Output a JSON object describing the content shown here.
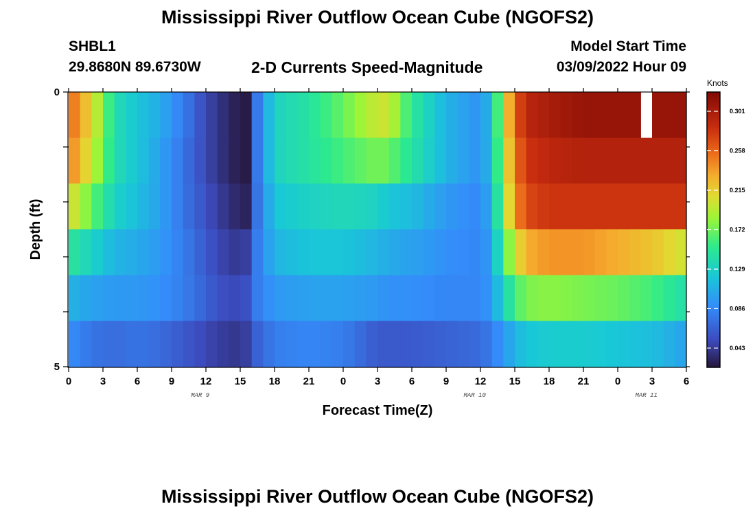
{
  "page": {
    "title": "Mississippi River Outflow Ocean Cube (NGOFS2)",
    "footer_title": "Mississippi River Outflow Ocean Cube (NGOFS2)",
    "station": "SHBL1",
    "coords": "29.8680N  89.6730W",
    "variable": "2-D Currents Speed-Magnitude",
    "model_start_label": "Model Start Time",
    "model_start_value": "03/09/2022 Hour 09"
  },
  "chart_data": {
    "type": "heatmap",
    "title": "2-D Currents Speed-Magnitude",
    "xlabel": "Forecast Time(Z)",
    "ylabel": "Depth (ft)",
    "x_tick_labels": [
      "0",
      "3",
      "6",
      "9",
      "12",
      "15",
      "18",
      "21",
      "0",
      "3",
      "6",
      "9",
      "12",
      "15",
      "18",
      "21",
      "0",
      "3",
      "6"
    ],
    "x_date_labels": [
      {
        "label": "MAR 9",
        "hour": 11.5
      },
      {
        "label": "MAR 10",
        "hour": 35.5
      },
      {
        "label": "MAR 11",
        "hour": 50.5
      }
    ],
    "x_range_hours": [
      0,
      54
    ],
    "y_tick_labels": [
      "0",
      "5"
    ],
    "y_range": [
      0,
      5
    ],
    "colorbar": {
      "unit": "Knots",
      "range": [
        0.022,
        0.322
      ],
      "tick_values": [
        0.301,
        0.258,
        0.215,
        0.172,
        0.129,
        0.086,
        0.043
      ],
      "tick_labels": [
        "0.301",
        "0.258",
        "0.215",
        "0.172",
        "0.129",
        "0.086",
        "0.043"
      ]
    },
    "layers": [
      {
        "key_hours": [
          0,
          2,
          4,
          6,
          8,
          10,
          12,
          13,
          15,
          15.5,
          16,
          18,
          21,
          24,
          27,
          28,
          30,
          33,
          36,
          37,
          38,
          39,
          40,
          42,
          45,
          48,
          51,
          54
        ],
        "key_values": [
          0.26,
          0.21,
          0.14,
          0.12,
          0.105,
          0.08,
          0.05,
          0.04,
          0.025,
          0.025,
          0.06,
          0.13,
          0.145,
          0.17,
          0.2,
          0.2,
          0.15,
          0.11,
          0.09,
          0.12,
          0.2,
          0.26,
          0.29,
          0.3,
          0.31,
          0.31,
          0.31,
          0.31
        ]
      },
      {
        "key_hours": [
          0,
          2,
          4,
          6,
          8,
          10,
          12,
          13,
          15,
          15.5,
          16,
          18,
          21,
          24,
          27,
          28,
          30,
          33,
          36,
          37,
          38,
          39,
          40,
          42,
          45,
          48,
          51,
          54
        ],
        "key_values": [
          0.25,
          0.2,
          0.14,
          0.12,
          0.1,
          0.075,
          0.05,
          0.04,
          0.025,
          0.025,
          0.06,
          0.13,
          0.145,
          0.16,
          0.175,
          0.17,
          0.145,
          0.11,
          0.09,
          0.12,
          0.19,
          0.25,
          0.28,
          0.29,
          0.295,
          0.295,
          0.295,
          0.295
        ]
      },
      {
        "key_hours": [
          0,
          2,
          4,
          6,
          8,
          10,
          12,
          13,
          15,
          15.5,
          16,
          18,
          21,
          24,
          27,
          28,
          30,
          33,
          36,
          37,
          38,
          39,
          40,
          42,
          45,
          48,
          51,
          54
        ],
        "key_values": [
          0.21,
          0.17,
          0.13,
          0.115,
          0.1,
          0.075,
          0.055,
          0.045,
          0.03,
          0.03,
          0.06,
          0.12,
          0.13,
          0.135,
          0.13,
          0.12,
          0.115,
          0.095,
          0.085,
          0.11,
          0.18,
          0.24,
          0.27,
          0.28,
          0.28,
          0.28,
          0.28,
          0.28
        ]
      },
      {
        "key_hours": [
          0,
          2,
          4,
          6,
          8,
          10,
          12,
          13,
          15,
          15.5,
          16,
          18,
          21,
          24,
          27,
          28,
          30,
          33,
          36,
          37,
          38,
          39,
          40,
          42,
          45,
          48,
          51,
          54
        ],
        "key_values": [
          0.15,
          0.13,
          0.11,
          0.105,
          0.095,
          0.08,
          0.06,
          0.05,
          0.04,
          0.045,
          0.07,
          0.11,
          0.12,
          0.12,
          0.11,
          0.105,
          0.1,
          0.09,
          0.085,
          0.1,
          0.16,
          0.2,
          0.23,
          0.24,
          0.24,
          0.23,
          0.22,
          0.2
        ]
      },
      {
        "key_hours": [
          0,
          2,
          4,
          6,
          8,
          10,
          12,
          13,
          15,
          15.5,
          16,
          18,
          21,
          24,
          27,
          28,
          30,
          33,
          36,
          37,
          38,
          39,
          40,
          42,
          45,
          48,
          51,
          54
        ],
        "key_values": [
          0.11,
          0.1,
          0.095,
          0.095,
          0.09,
          0.08,
          0.065,
          0.055,
          0.05,
          0.055,
          0.075,
          0.095,
          0.1,
          0.1,
          0.095,
          0.09,
          0.09,
          0.085,
          0.085,
          0.095,
          0.13,
          0.16,
          0.175,
          0.18,
          0.175,
          0.17,
          0.16,
          0.14
        ]
      },
      {
        "key_hours": [
          0,
          2,
          4,
          6,
          8,
          10,
          12,
          13,
          15,
          15.5,
          16,
          18,
          21,
          24,
          27,
          28,
          30,
          33,
          36,
          37,
          38,
          39,
          40,
          42,
          45,
          48,
          51,
          54
        ],
        "key_values": [
          0.09,
          0.075,
          0.07,
          0.075,
          0.07,
          0.06,
          0.05,
          0.045,
          0.04,
          0.045,
          0.06,
          0.08,
          0.085,
          0.08,
          0.06,
          0.06,
          0.06,
          0.065,
          0.07,
          0.08,
          0.095,
          0.11,
          0.12,
          0.125,
          0.125,
          0.12,
          0.115,
          0.1
        ]
      }
    ],
    "missing_cells": [
      {
        "layer": 0,
        "hour": 50
      }
    ],
    "grid": false,
    "legend": "colorbar-right"
  }
}
